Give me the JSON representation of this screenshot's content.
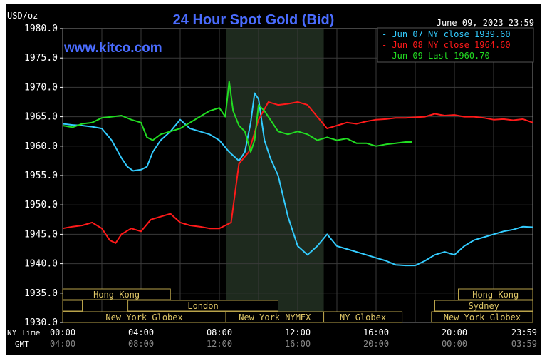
{
  "chart_data": {
    "type": "line",
    "title": "24 Hour Spot Gold (Bid)",
    "watermark": "www.kitco.com",
    "ylabel": "USD/oz",
    "timestamp": "June 09, 2023 23:59",
    "ylim": [
      1930,
      1980
    ],
    "xlim": [
      0,
      24
    ],
    "grid": true,
    "legend": "top-right",
    "yticks": [
      "1980.0",
      "1975.0",
      "1970.0",
      "1965.0",
      "1960.0",
      "1955.0",
      "1950.0",
      "1945.0",
      "1940.0",
      "1935.0",
      "1930.0"
    ],
    "ytick_values": [
      1980,
      1975,
      1970,
      1965,
      1960,
      1955,
      1950,
      1945,
      1940,
      1935,
      1930
    ],
    "xrow1_label": "NY Time",
    "xrow2_label": "GMT",
    "xticks_ny": [
      "00:00",
      "04:00",
      "08:00",
      "12:00",
      "16:00",
      "20:00",
      "23:59"
    ],
    "xticks_gmt": [
      "04:00",
      "08:00",
      "12:00",
      "16:00",
      "20:00",
      "00:00",
      "03:59"
    ],
    "xtick_values": [
      0,
      4,
      8,
      12,
      16,
      20,
      23.983
    ],
    "highlight_range": [
      8.33,
      13.33
    ],
    "series": [
      {
        "name": "Jun 07 NY close 1939.60",
        "color": "#33ccff",
        "x": [
          0,
          0.5,
          1,
          1.5,
          2,
          2.5,
          3,
          3.3,
          3.6,
          4,
          4.3,
          4.6,
          5,
          5.5,
          6,
          6.5,
          7,
          7.5,
          8,
          8.5,
          9,
          9.3,
          9.6,
          9.8,
          10,
          10.3,
          10.6,
          11,
          11.5,
          12,
          12.5,
          13,
          13.5,
          14,
          14.5,
          15,
          15.5,
          16,
          16.5,
          17,
          17.5,
          18,
          18.5,
          19,
          19.5,
          20,
          20.5,
          21,
          21.5,
          22,
          22.5,
          23,
          23.5,
          24
        ],
        "y": [
          1963.8,
          1963.6,
          1963.5,
          1963.3,
          1963.0,
          1961.0,
          1958.0,
          1956.5,
          1955.8,
          1956.0,
          1956.5,
          1959.0,
          1961.0,
          1962.5,
          1964.5,
          1963.0,
          1962.5,
          1962.0,
          1961.0,
          1959.0,
          1957.5,
          1959.0,
          1964.0,
          1969.0,
          1968.0,
          1961.0,
          1958.0,
          1955.0,
          1948.0,
          1943.0,
          1941.5,
          1943.0,
          1945.0,
          1943.0,
          1942.5,
          1942.0,
          1941.5,
          1941.0,
          1940.5,
          1939.8,
          1939.7,
          1939.7,
          1940.5,
          1941.5,
          1942.0,
          1941.5,
          1943.0,
          1944.0,
          1944.5,
          1945.0,
          1945.5,
          1945.8,
          1946.3,
          1946.2
        ]
      },
      {
        "name": "Jun 08 NY close 1964.60",
        "color": "#ff1a1a",
        "x": [
          0,
          0.5,
          1,
          1.5,
          2,
          2.4,
          2.7,
          3,
          3.5,
          4,
          4.5,
          5,
          5.5,
          6,
          6.5,
          7,
          7.5,
          8,
          8.3,
          8.6,
          9,
          9.5,
          10,
          10.5,
          11,
          11.5,
          12,
          12.5,
          13,
          13.5,
          14,
          14.5,
          15,
          15.5,
          16,
          16.5,
          17,
          17.5,
          18,
          18.5,
          19,
          19.5,
          20,
          20.5,
          21,
          21.5,
          22,
          22.5,
          23,
          23.5,
          24
        ],
        "y": [
          1946.0,
          1946.3,
          1946.5,
          1947.0,
          1946.0,
          1944.0,
          1943.5,
          1945.0,
          1946.0,
          1945.5,
          1947.5,
          1948.0,
          1948.5,
          1947.0,
          1946.5,
          1946.3,
          1946.0,
          1946.0,
          1946.5,
          1947.0,
          1957.0,
          1959.0,
          1964.5,
          1967.5,
          1967.0,
          1967.2,
          1967.5,
          1967.0,
          1965.0,
          1963.0,
          1963.5,
          1964.0,
          1963.8,
          1964.2,
          1964.5,
          1964.6,
          1964.8,
          1964.8,
          1964.9,
          1965.0,
          1965.5,
          1965.2,
          1965.3,
          1965.0,
          1965.0,
          1964.8,
          1964.5,
          1964.6,
          1964.4,
          1964.6,
          1964.0
        ]
      },
      {
        "name": "Jun 09 Last 1960.70",
        "color": "#22dd22",
        "x": [
          0,
          0.5,
          1,
          1.5,
          2,
          2.5,
          3,
          3.5,
          4,
          4.3,
          4.6,
          5,
          5.5,
          6,
          6.5,
          7,
          7.5,
          8,
          8.3,
          8.5,
          8.7,
          9,
          9.3,
          9.6,
          9.8,
          10,
          10.3,
          10.6,
          11,
          11.5,
          12,
          12.5,
          13,
          13.5,
          14,
          14.5,
          15,
          15.5,
          16,
          16.5,
          17,
          17.5,
          17.83
        ],
        "y": [
          1963.5,
          1963.2,
          1963.8,
          1964.0,
          1964.8,
          1965.0,
          1965.2,
          1964.5,
          1964.0,
          1961.5,
          1961.0,
          1962.0,
          1962.5,
          1963.0,
          1964.0,
          1965.0,
          1966.0,
          1966.5,
          1965.0,
          1971.0,
          1966.0,
          1963.5,
          1962.5,
          1959.0,
          1961.0,
          1967.0,
          1966.0,
          1964.5,
          1962.5,
          1962.0,
          1962.5,
          1962.0,
          1961.0,
          1961.5,
          1961.0,
          1961.3,
          1960.5,
          1960.5,
          1960.0,
          1960.3,
          1960.5,
          1960.7,
          1960.7
        ]
      }
    ],
    "sessions": [
      {
        "label": "Hong Kong",
        "row": 0,
        "start": 0,
        "end": 5.5
      },
      {
        "label": "",
        "row": 1,
        "start": 0,
        "end": 1.0
      },
      {
        "label": "London",
        "row": 1,
        "start": 3.33,
        "end": 11.0
      },
      {
        "label": "New York Globex",
        "row": 2,
        "start": 0,
        "end": 8.33
      },
      {
        "label": "New York NYMEX",
        "row": 2,
        "start": 8.33,
        "end": 13.33
      },
      {
        "label": "NY Globex",
        "row": 2,
        "start": 13.33,
        "end": 17.33
      },
      {
        "label": "Hong Kong",
        "row": 0,
        "start": 20.2,
        "end": 24
      },
      {
        "label": "Sydney",
        "row": 1,
        "start": 19.0,
        "end": 24
      },
      {
        "label": "New York Globex",
        "row": 2,
        "start": 18.83,
        "end": 24
      }
    ]
  }
}
